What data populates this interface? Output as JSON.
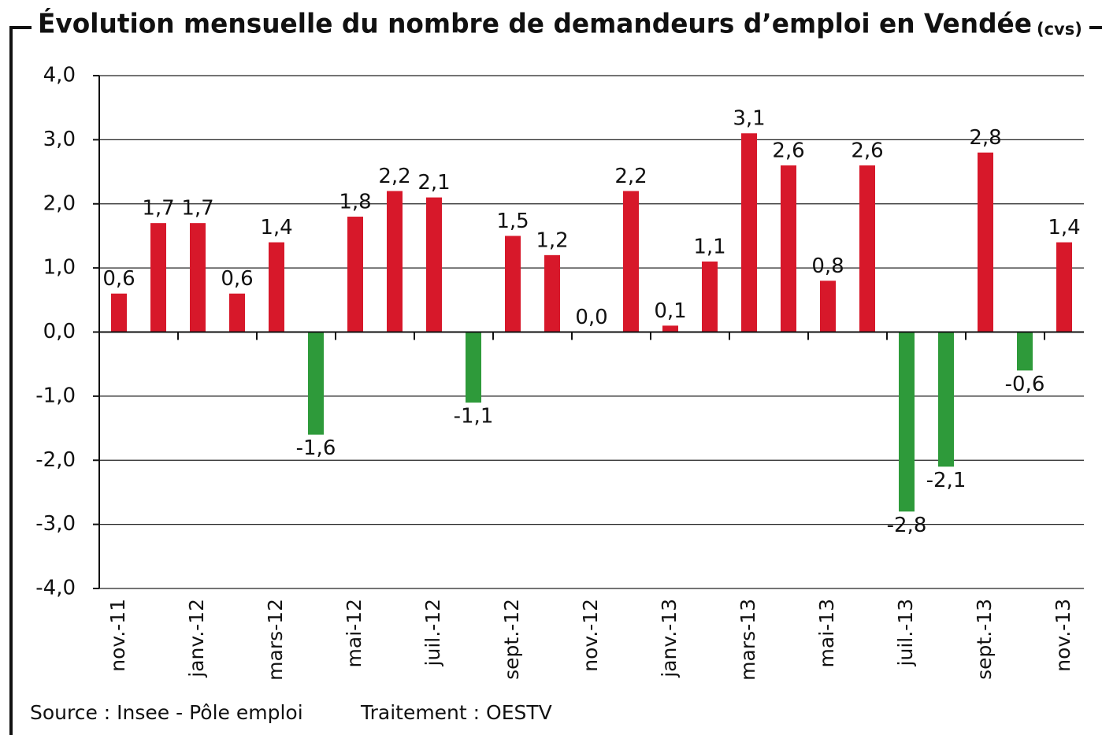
{
  "chart_data": {
    "type": "bar",
    "title": "Évolution mensuelle du nombre de demandeurs d’emploi en Vendée",
    "title_note": "(cvs)",
    "source": "Source : Insee - Pôle emploi",
    "processing": "Traitement : OESTV",
    "categories": [
      "nov.-11",
      null,
      "janv.-12",
      null,
      "mars-12",
      null,
      "mai-12",
      null,
      "juil.-12",
      null,
      "sept.-12",
      null,
      "nov.-12",
      null,
      "janv.-13",
      null,
      "mars-13",
      null,
      "mai-13",
      null,
      "juil.-13",
      null,
      "sept.-13",
      null,
      "nov.-13"
    ],
    "values": [
      0.6,
      1.7,
      1.7,
      0.6,
      1.4,
      -1.6,
      1.8,
      2.2,
      2.1,
      -1.1,
      1.5,
      1.2,
      0.0,
      2.2,
      0.1,
      1.1,
      3.1,
      2.6,
      0.8,
      2.6,
      -2.8,
      -2.1,
      2.8,
      -0.6,
      1.4
    ],
    "value_labels": [
      "0,6",
      "1,7",
      "1,7",
      "0,6",
      "1,4",
      "-1,6",
      "1,8",
      "2,2",
      "2,1",
      "-1,1",
      "1,5",
      "1,2",
      "0,0",
      "2,2",
      "0,1",
      "1,1",
      "3,1",
      "2,6",
      "0,8",
      "2,6",
      "-2,8",
      "-2,1",
      "2,8",
      "-0,6",
      "1,4"
    ],
    "color": "#d7182a",
    "negative_color": "#2e9a3a",
    "ylim": [
      -4,
      4
    ],
    "yticks": [
      {
        "value": -4,
        "label": "-4,0"
      },
      {
        "value": -3,
        "label": "-3,0"
      },
      {
        "value": -2,
        "label": "-2,0"
      },
      {
        "value": -1,
        "label": "-1,0"
      },
      {
        "value": 0,
        "label": "0,0"
      },
      {
        "value": 1,
        "label": "1,0"
      },
      {
        "value": 2,
        "label": "2,0"
      },
      {
        "value": 3,
        "label": "3,0"
      },
      {
        "value": 4,
        "label": "4,0"
      }
    ],
    "grid": true
  }
}
